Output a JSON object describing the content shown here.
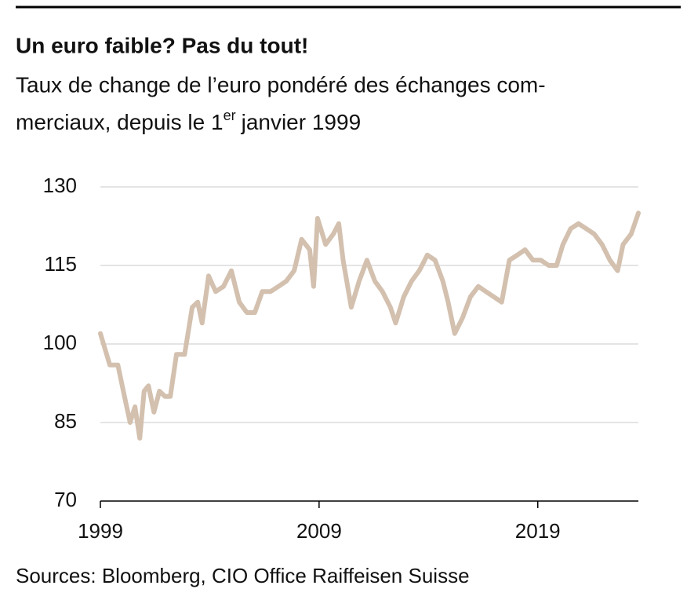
{
  "chart_data": {
    "type": "line",
    "title": "Un euro faible? Pas du tout!",
    "subtitle": {
      "line1": "Taux de change de l’euro pondéré des échanges com-",
      "line2": "merciaux, depuis le 1",
      "superscript": "er",
      "line2_end": "janvier 1999"
    },
    "source": "Sources: Bloomberg, CIO Office Raiffeisen Suisse",
    "color": "#d3c0ae",
    "x": [
      1999.0,
      1999.43,
      1999.8,
      2000.15,
      2000.36,
      2000.58,
      2000.8,
      2001.0,
      2001.2,
      2001.45,
      2001.7,
      2001.95,
      2002.2,
      2002.48,
      2002.85,
      2003.2,
      2003.45,
      2003.65,
      2003.95,
      2004.27,
      2004.63,
      2004.99,
      2005.35,
      2005.7,
      2006.06,
      2006.4,
      2006.78,
      2007.14,
      2007.5,
      2007.86,
      2008.2,
      2008.57,
      2008.75,
      2008.93,
      2009.3,
      2009.65,
      2009.9,
      2010.1,
      2010.47,
      2010.83,
      2011.19,
      2011.55,
      2011.9,
      2012.26,
      2012.5,
      2012.87,
      2013.23,
      2013.58,
      2013.95,
      2014.3,
      2014.66,
      2014.9,
      2015.2,
      2015.56,
      2015.92,
      2016.28,
      2016.63,
      2016.99,
      2017.35,
      2017.7,
      2018.07,
      2018.42,
      2018.78,
      2019.14,
      2019.5,
      2019.86,
      2020.15,
      2020.5,
      2020.86,
      2021.22,
      2021.58,
      2021.94,
      2022.3,
      2022.65,
      2022.9,
      2023.27,
      2023.6
    ],
    "values": [
      102,
      96,
      96,
      89,
      85,
      88,
      82,
      91,
      92,
      87,
      91,
      90,
      90,
      98,
      98,
      107,
      108,
      104,
      113,
      110,
      111,
      114,
      108,
      106,
      106,
      110,
      110,
      111,
      112,
      114,
      120,
      118,
      111,
      124,
      119,
      121,
      123,
      116,
      107,
      112,
      116,
      112,
      110,
      107,
      104,
      109,
      112,
      114,
      117,
      116,
      112,
      108,
      102,
      105,
      109,
      111,
      110,
      109,
      108,
      116,
      117,
      118,
      116,
      116,
      115,
      115,
      119,
      122,
      123,
      122,
      121,
      119,
      116,
      114,
      119,
      121,
      125
    ],
    "xlim": [
      1999,
      2023.6
    ],
    "xticks": [
      1999,
      2009,
      2019
    ],
    "ylim": [
      70,
      130
    ],
    "yticks": [
      70,
      85,
      100,
      115,
      130
    ],
    "grid": true
  }
}
